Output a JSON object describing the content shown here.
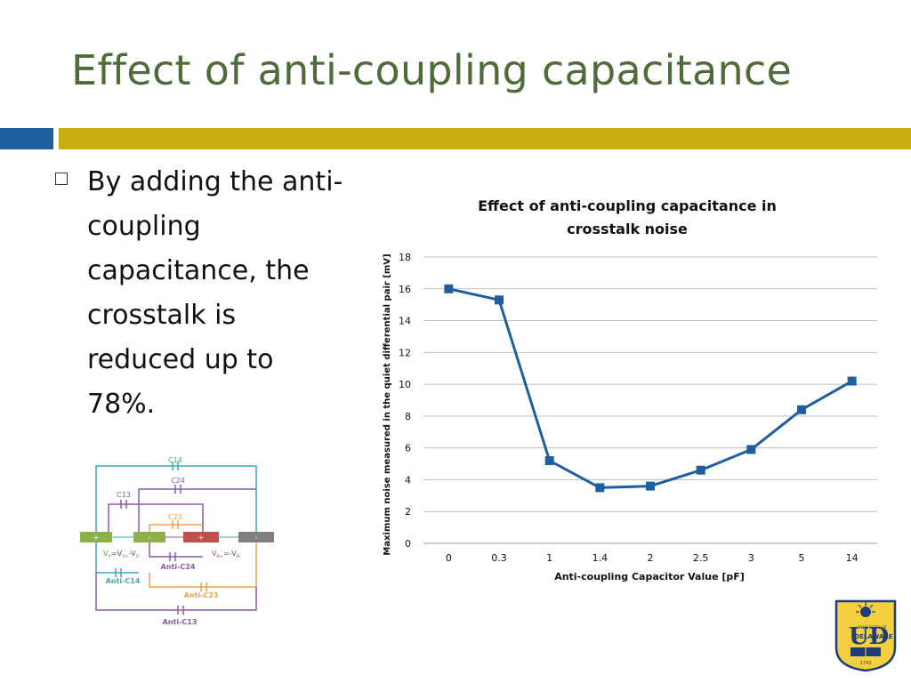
{
  "slide": {
    "title": "Effect of anti-coupling capacitance",
    "bullet": "By adding the anti-coupling capacitance, the crosstalk is reduced up to 78%."
  },
  "colors": {
    "title": "#4f6b3a",
    "accent_blue": "#1f5f9e",
    "accent_gold": "#c8ad0f",
    "series": "#1f5f9e"
  },
  "chart_data": {
    "type": "line",
    "title": "Effect of anti-coupling capacitance in crosstalk noise",
    "xlabel": "Anti-coupling Capacitor Value [pF]",
    "ylabel": "Maximum noise measured in the quiet differential pair [mV]",
    "categories": [
      "0",
      "0.3",
      "1",
      "1.4",
      "2",
      "2.5",
      "3",
      "5",
      "14"
    ],
    "values": [
      16,
      15.3,
      5.2,
      3.5,
      3.6,
      4.6,
      5.9,
      8.4,
      10.2
    ],
    "ylim": [
      0,
      18
    ],
    "yticks": [
      0,
      2,
      4,
      6,
      8,
      10,
      12,
      14,
      16,
      18
    ],
    "grid": true,
    "legend": "none",
    "marker": "square"
  },
  "circuit": {
    "labels": {
      "c14": "C14",
      "c24": "C24",
      "c13": "C13",
      "c23": "C23",
      "anti_c24": "Anti-C24",
      "anti_c14": "Anti-C14",
      "anti_c23": "Anti-C23",
      "anti_c13": "Anti-C13",
      "plus": "+",
      "minus": "-",
      "vv": "V",
      "vv_sub": "V",
      "eq1": "=V",
      "vv_plus_sub": "V+",
      "dash1": "-V",
      "vv_minus_sub": "V-",
      "va": "V",
      "va_sub": "A+",
      "eq2": "=-V",
      "va_minus_sub": "A-"
    }
  },
  "logo": {
    "line1": "UNIVERSITY OF",
    "line2": "DELAWARE",
    "letters": "UD",
    "year": "1743"
  }
}
